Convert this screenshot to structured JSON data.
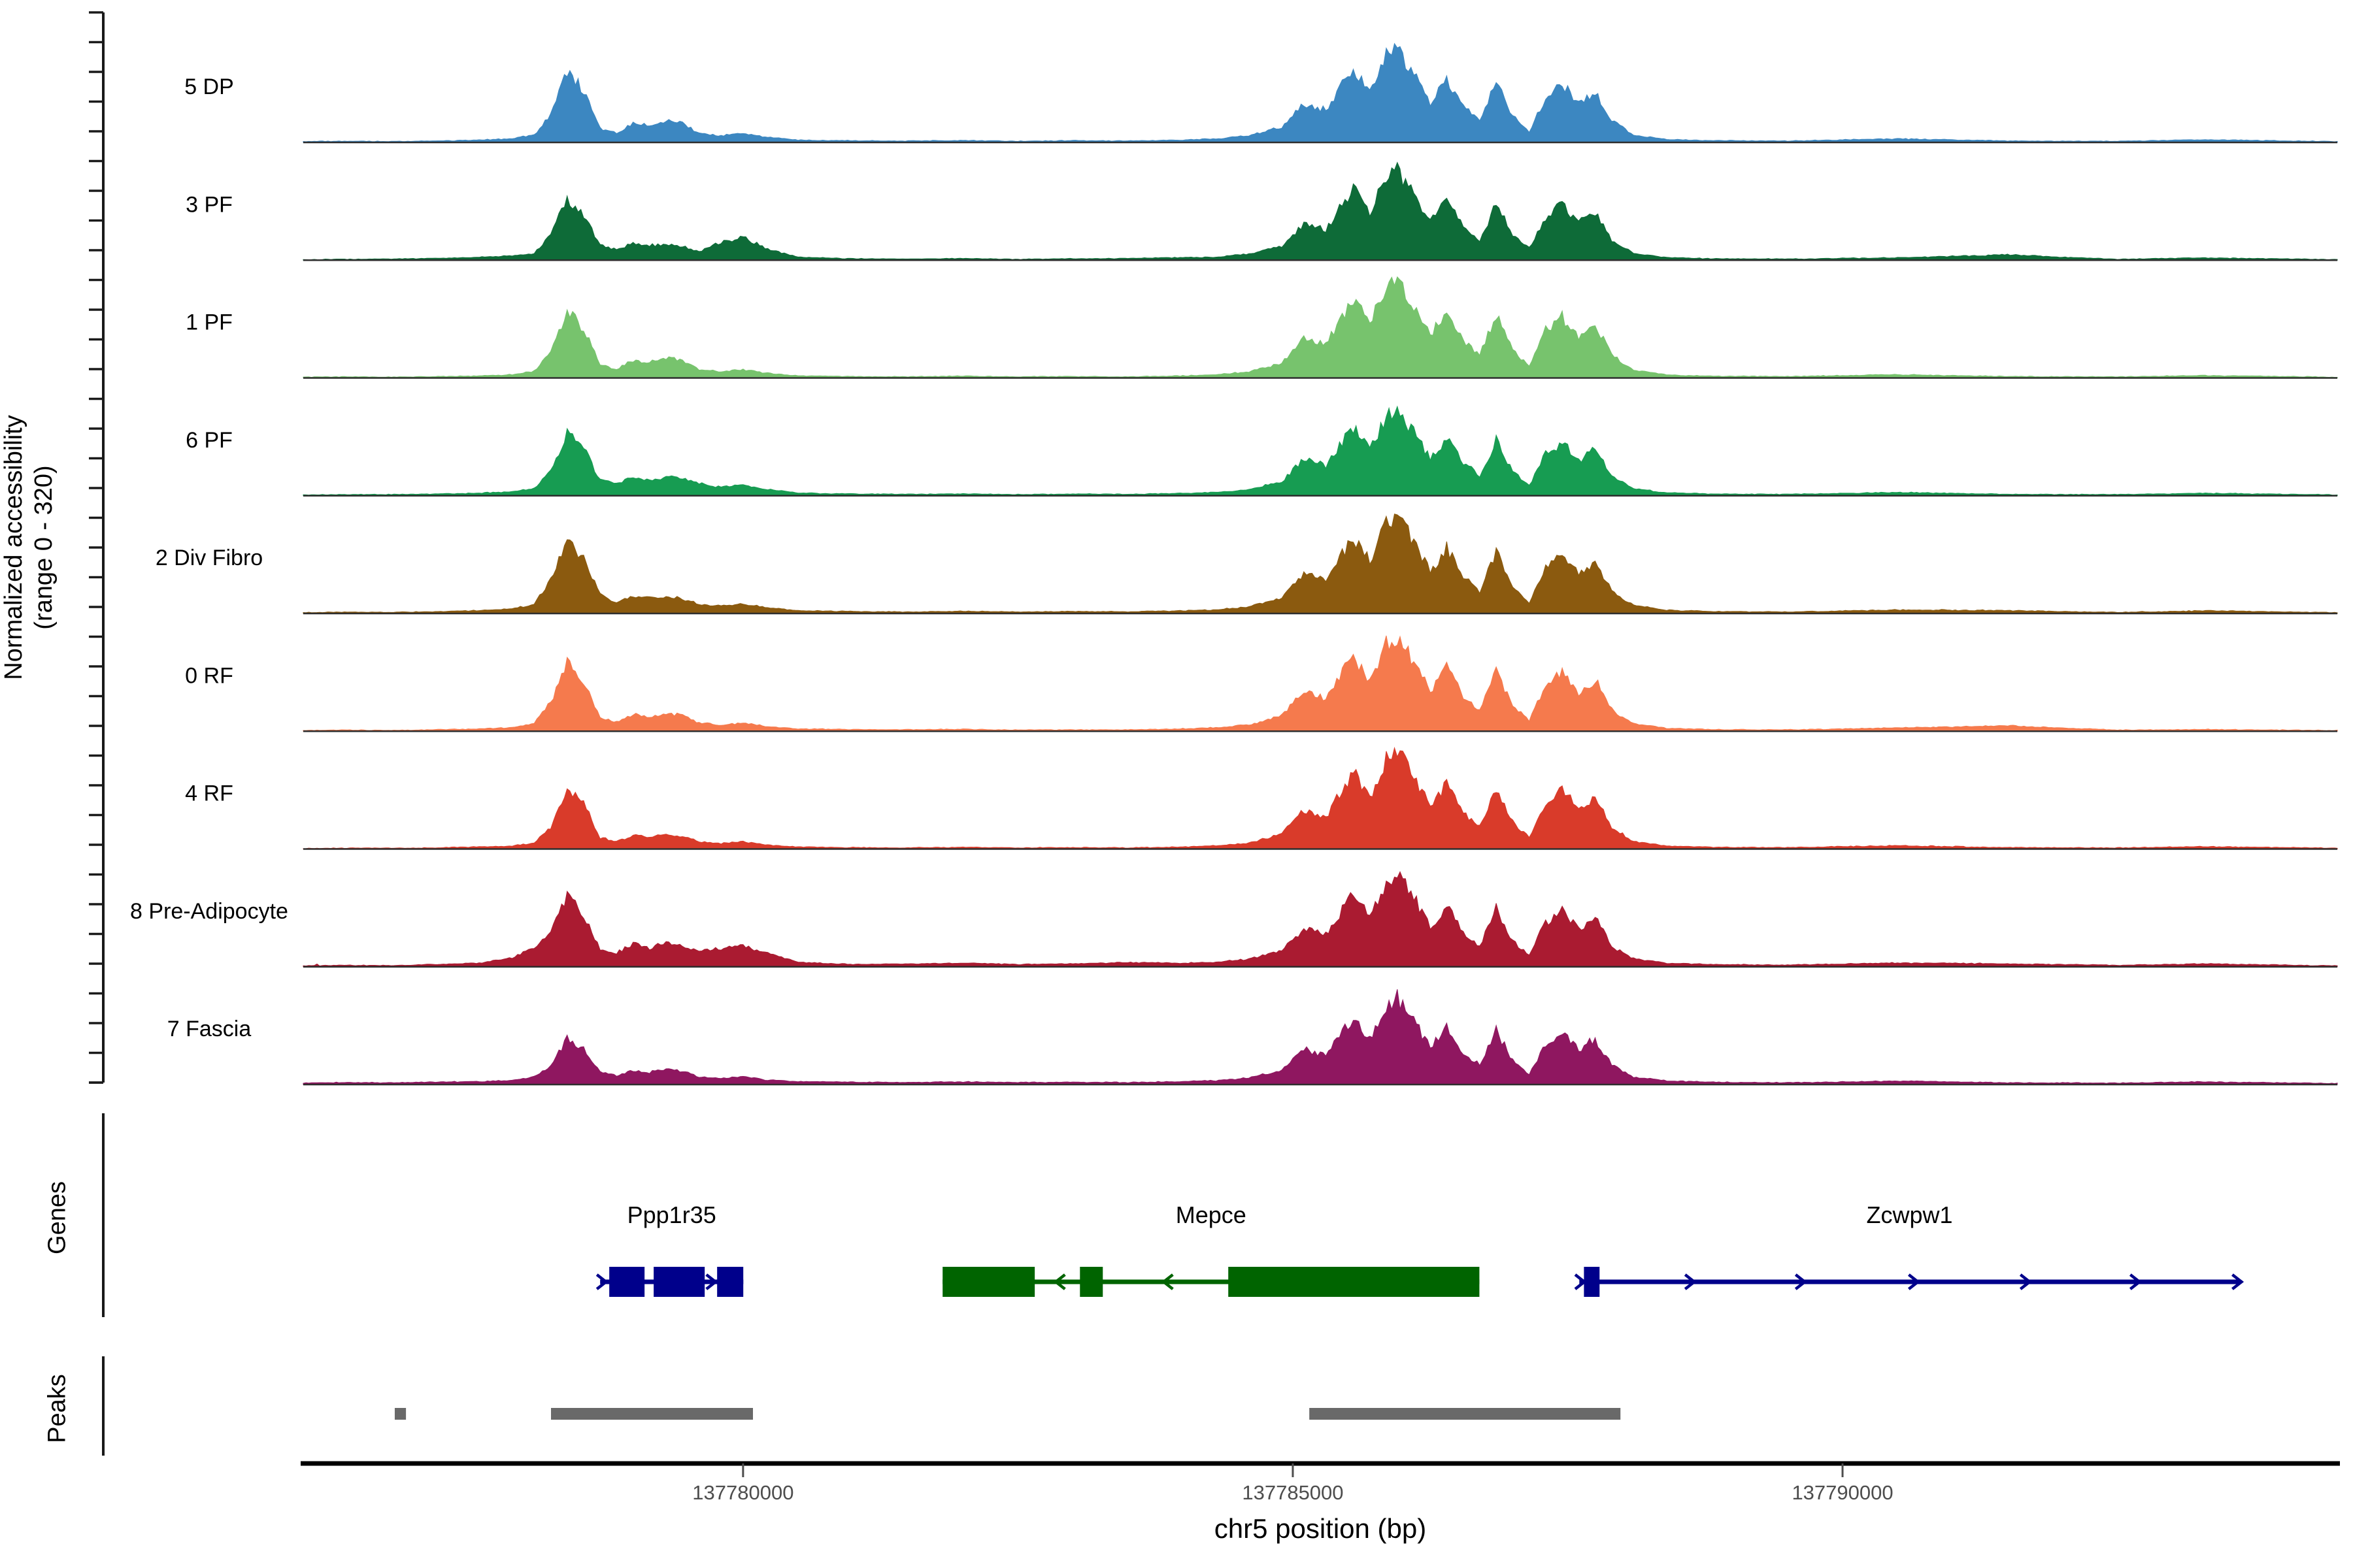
{
  "figure_background": "#ffffff",
  "y_axis": {
    "label_line1": "Normalized accessibility",
    "label_line2": "(range 0 - 320)",
    "range": [
      0,
      320
    ]
  },
  "x_axis": {
    "title": "chr5 position (bp)",
    "ticks": [
      {
        "bp": 137780000,
        "label": "137780000"
      },
      {
        "bp": 137785000,
        "label": "137785000"
      },
      {
        "bp": 137790000,
        "label": "137790000"
      }
    ],
    "tick_color": "#4d4d4d"
  },
  "genome_window": {
    "chrom": "chr5",
    "start": 137776000,
    "end": 137794500
  },
  "sections": {
    "genes_label": "Genes",
    "peaks_label": "Peaks"
  },
  "chart_data": {
    "type": "area",
    "title": "",
    "xlabel": "chr5 position (bp)",
    "ylabel": "Normalized accessibility (range 0 - 320)",
    "ylim": [
      0,
      320
    ],
    "x_bp": [
      137776000,
      137776400,
      137776800,
      137777200,
      137777600,
      137777900,
      137778100,
      137778250,
      137778400,
      137778550,
      137778700,
      137778850,
      137779000,
      137779150,
      137779300,
      137779450,
      137779600,
      137779800,
      137780000,
      137780200,
      137780500,
      137781000,
      137781500,
      137782000,
      137782500,
      137783000,
      137783500,
      137784000,
      137784300,
      137784600,
      137784900,
      137785100,
      137785300,
      137785450,
      137785550,
      137785700,
      137785850,
      137785950,
      137786100,
      137786250,
      137786400,
      137786550,
      137786700,
      137786850,
      137787000,
      137787150,
      137787300,
      137787450,
      137787600,
      137787750,
      137787900,
      137788100,
      137788400,
      137788800,
      137789500,
      137790500,
      137791500,
      137792500,
      137793300,
      137794500
    ],
    "series": [
      {
        "name": "5 DP",
        "color": "#3C87C1",
        "values": [
          3,
          4,
          3,
          5,
          8,
          12,
          25,
          90,
          235,
          170,
          45,
          30,
          62,
          55,
          70,
          62,
          30,
          22,
          30,
          18,
          8,
          6,
          5,
          7,
          4,
          6,
          5,
          8,
          12,
          22,
          50,
          128,
          105,
          190,
          245,
          165,
          280,
          300,
          225,
          130,
          205,
          115,
          70,
          195,
          85,
          35,
          145,
          190,
          125,
          165,
          70,
          25,
          10,
          6,
          5,
          12,
          5,
          4,
          9,
          3
        ]
      },
      {
        "name": "3 PF",
        "color": "#0E6B38",
        "values": [
          2,
          3,
          4,
          6,
          10,
          14,
          22,
          80,
          205,
          150,
          48,
          35,
          55,
          48,
          50,
          45,
          28,
          60,
          75,
          40,
          10,
          5,
          4,
          6,
          3,
          5,
          6,
          9,
          10,
          20,
          45,
          120,
          100,
          180,
          235,
          155,
          270,
          290,
          215,
          125,
          195,
          110,
          65,
          185,
          80,
          40,
          140,
          180,
          120,
          160,
          65,
          22,
          9,
          5,
          4,
          8,
          18,
          3,
          8,
          2
        ]
      },
      {
        "name": "1 PF",
        "color": "#77C36D",
        "values": [
          3,
          4,
          3,
          5,
          7,
          11,
          22,
          85,
          222,
          160,
          42,
          28,
          58,
          52,
          65,
          58,
          28,
          20,
          28,
          16,
          7,
          5,
          4,
          6,
          4,
          5,
          4,
          7,
          11,
          20,
          48,
          135,
          110,
          200,
          260,
          175,
          300,
          320,
          240,
          140,
          220,
          120,
          75,
          205,
          90,
          38,
          155,
          200,
          130,
          175,
          75,
          26,
          10,
          6,
          5,
          11,
          5,
          4,
          8,
          3
        ]
      },
      {
        "name": "6 PF",
        "color": "#179C52",
        "values": [
          3,
          4,
          4,
          6,
          9,
          13,
          24,
          78,
          205,
          155,
          50,
          40,
          60,
          50,
          62,
          55,
          40,
          28,
          35,
          22,
          9,
          6,
          5,
          6,
          4,
          6,
          5,
          8,
          11,
          20,
          46,
          118,
          98,
          175,
          225,
          152,
          258,
          276,
          208,
          120,
          190,
          108,
          66,
          180,
          80,
          34,
          135,
          175,
          115,
          152,
          66,
          24,
          10,
          6,
          5,
          11,
          5,
          4,
          8,
          3
        ]
      },
      {
        "name": "2 Div Fibro",
        "color": "#8B5A0F",
        "values": [
          3,
          5,
          4,
          6,
          10,
          15,
          30,
          110,
          235,
          185,
          60,
          35,
          58,
          50,
          55,
          48,
          30,
          24,
          32,
          20,
          9,
          7,
          5,
          8,
          5,
          7,
          6,
          9,
          12,
          22,
          52,
          130,
          108,
          195,
          250,
          170,
          290,
          318,
          235,
          135,
          215,
          118,
          72,
          200,
          88,
          36,
          150,
          195,
          128,
          170,
          72,
          26,
          11,
          7,
          5,
          12,
          10,
          4,
          9,
          3
        ]
      },
      {
        "name": "0 RF",
        "color": "#F57A4D",
        "values": [
          3,
          4,
          3,
          5,
          8,
          12,
          26,
          95,
          225,
          165,
          45,
          30,
          55,
          48,
          58,
          52,
          28,
          20,
          28,
          16,
          8,
          6,
          5,
          7,
          4,
          5,
          5,
          8,
          12,
          21,
          50,
          130,
          106,
          192,
          245,
          165,
          285,
          308,
          230,
          132,
          210,
          115,
          70,
          195,
          85,
          35,
          148,
          192,
          126,
          168,
          70,
          25,
          10,
          6,
          5,
          11,
          18,
          4,
          6,
          3
        ]
      },
      {
        "name": "4 RF",
        "color": "#D93B2A",
        "values": [
          2,
          3,
          3,
          4,
          7,
          10,
          20,
          70,
          195,
          150,
          38,
          25,
          45,
          40,
          48,
          42,
          24,
          18,
          24,
          14,
          7,
          5,
          4,
          6,
          4,
          5,
          4,
          7,
          11,
          20,
          48,
          128,
          105,
          192,
          250,
          168,
          292,
          320,
          238,
          136,
          215,
          118,
          72,
          200,
          88,
          36,
          150,
          196,
          128,
          170,
          72,
          25,
          10,
          6,
          5,
          11,
          5,
          4,
          8,
          3
        ]
      },
      {
        "name": "8 Pre-Adipocyte",
        "color": "#AA1B31",
        "values": [
          3,
          5,
          4,
          8,
          12,
          30,
          60,
          120,
          228,
          175,
          55,
          45,
          75,
          60,
          80,
          70,
          50,
          60,
          70,
          45,
          15,
          8,
          10,
          12,
          8,
          10,
          14,
          12,
          15,
          25,
          55,
          125,
          105,
          185,
          240,
          160,
          275,
          305,
          230,
          128,
          200,
          112,
          68,
          190,
          85,
          36,
          145,
          188,
          122,
          162,
          68,
          26,
          12,
          8,
          6,
          13,
          10,
          5,
          10,
          3
        ]
      },
      {
        "name": "7 Fascia",
        "color": "#8F1760",
        "values": [
          5,
          7,
          6,
          8,
          10,
          14,
          25,
          60,
          150,
          115,
          40,
          28,
          45,
          40,
          50,
          44,
          26,
          20,
          26,
          16,
          10,
          8,
          7,
          9,
          7,
          8,
          7,
          10,
          13,
          22,
          48,
          115,
          95,
          170,
          220,
          150,
          255,
          285,
          210,
          120,
          188,
          105,
          64,
          178,
          78,
          34,
          132,
          172,
          112,
          150,
          64,
          24,
          12,
          8,
          6,
          12,
          6,
          5,
          9,
          4
        ]
      }
    ]
  },
  "genes": [
    {
      "name": "Ppp1r35",
      "color": "#00008B",
      "strand": "+",
      "line": [
        137778700,
        137780002
      ],
      "exons": [
        [
          137778783,
          137779104
        ],
        [
          137779187,
          137779651
        ],
        [
          137779764,
          137780002
        ]
      ],
      "arrows": [
        137778712,
        137779708
      ]
    },
    {
      "name": "Mepce",
      "color": "#006400",
      "strand": "-",
      "line": [
        137781815,
        137786697
      ],
      "exons": [
        [
          137781815,
          137782653
        ],
        [
          137783064,
          137783272
        ],
        [
          137784413,
          137786697
        ]
      ],
      "arrows": [
        137782886,
        137783867
      ]
    },
    {
      "name": "Zcwpw1",
      "color": "#00008B",
      "strand": "+",
      "line": [
        137787606,
        137793612
      ],
      "exons": [
        [
          137787648,
          137787790
        ]
      ],
      "arrows": [
        137787610,
        137788610,
        137789615,
        137790644,
        137791660,
        137792659,
        137793587
      ]
    }
  ],
  "peaks": {
    "color": "#696969",
    "intervals": [
      [
        137776832,
        137776934
      ],
      [
        137778253,
        137780090
      ],
      [
        137785150,
        137787980
      ]
    ]
  }
}
